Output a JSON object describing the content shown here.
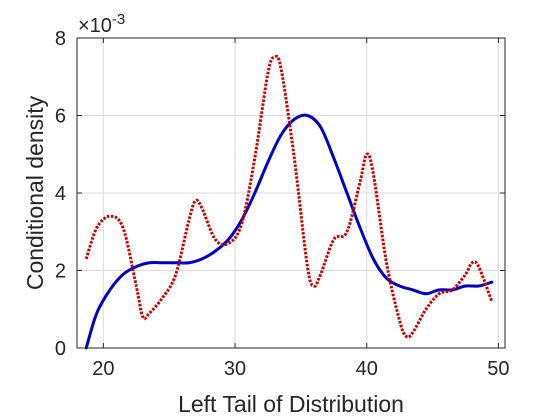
{
  "chart_data": {
    "type": "line",
    "title": "",
    "xlabel": "Left Tail of Distribution",
    "ylabel": "Conditional density",
    "xlim": [
      18,
      50.5
    ],
    "ylim": [
      0,
      0.008
    ],
    "x_ticks": [
      20,
      30,
      40,
      50
    ],
    "x_tick_labels": [
      "20",
      "30",
      "40",
      "50"
    ],
    "y_ticks": [
      0,
      0.002,
      0.004,
      0.006,
      0.008
    ],
    "y_tick_labels": [
      "0",
      "2",
      "4",
      "6",
      "8"
    ],
    "y_exponent_label": "×10",
    "y_exponent_power": "-3",
    "grid": true,
    "series": [
      {
        "style": "solid",
        "color": "#0000cc",
        "x": [
          18.7,
          19.5,
          20.5,
          21.5,
          22.5,
          23.5,
          24.5,
          25.5,
          26.5,
          27.5,
          28.5,
          29.5,
          30.5,
          31.5,
          32.5,
          33.5,
          34.5,
          35.5,
          36.5,
          37.5,
          38.5,
          39.5,
          40.5,
          41.5,
          42.5,
          43.5,
          44.5,
          45.5,
          46.5,
          47.5,
          48.5,
          49.5
        ],
        "y": [
          0.0,
          0.0009,
          0.0015,
          0.0019,
          0.0021,
          0.0022,
          0.0022,
          0.0022,
          0.0022,
          0.0023,
          0.0025,
          0.0028,
          0.0033,
          0.004,
          0.0048,
          0.0055,
          0.0059,
          0.006,
          0.0057,
          0.0049,
          0.004,
          0.0031,
          0.0023,
          0.0018,
          0.0016,
          0.0015,
          0.0014,
          0.0015,
          0.0015,
          0.0016,
          0.0016,
          0.0017
        ]
      },
      {
        "style": "dotted",
        "color": "#cc0000",
        "x": [
          18.7,
          19.5,
          20.5,
          21.5,
          22.5,
          23.0,
          23.5,
          24.5,
          25.5,
          26.5,
          27.0,
          27.5,
          28.5,
          29.5,
          30.5,
          31.5,
          32.5,
          33.0,
          33.5,
          34.5,
          35.5,
          36.0,
          36.5,
          37.5,
          38.5,
          39.5,
          40.0,
          40.5,
          41.5,
          42.5,
          43.0,
          43.5,
          44.5,
          45.5,
          46.5,
          47.5,
          48.0,
          48.5,
          49.5
        ],
        "y": [
          0.0023,
          0.0031,
          0.0034,
          0.0031,
          0.0016,
          0.0008,
          0.0009,
          0.0013,
          0.0019,
          0.0033,
          0.0038,
          0.0036,
          0.0028,
          0.0027,
          0.0032,
          0.0049,
          0.0071,
          0.0075,
          0.0072,
          0.0049,
          0.0021,
          0.0016,
          0.0019,
          0.0028,
          0.003,
          0.0043,
          0.005,
          0.0045,
          0.0022,
          0.0007,
          0.0003,
          0.0004,
          0.001,
          0.0014,
          0.0015,
          0.0019,
          0.0022,
          0.0021,
          0.0012
        ]
      }
    ]
  }
}
